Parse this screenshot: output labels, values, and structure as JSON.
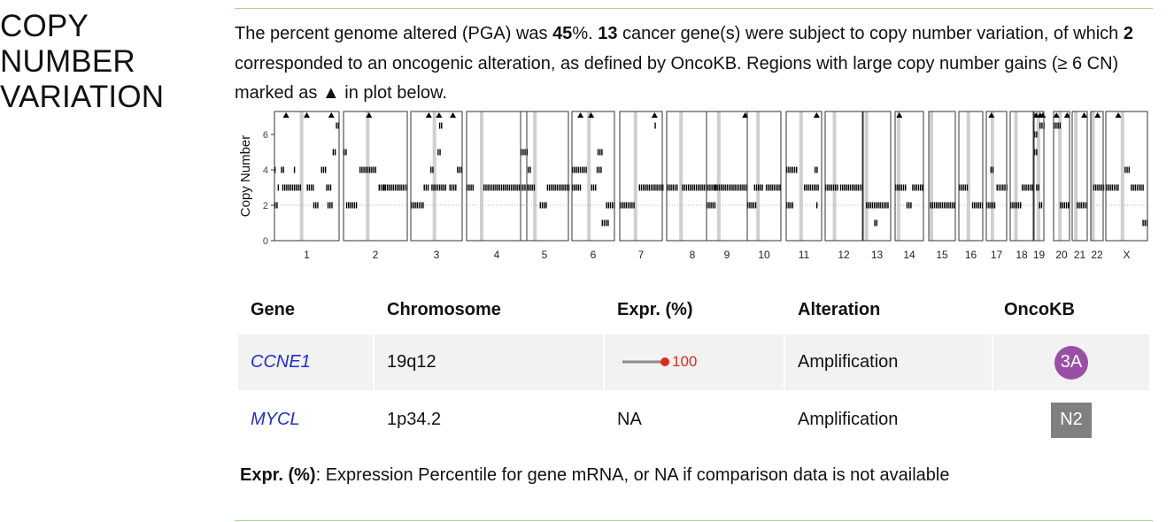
{
  "section": {
    "title_line1": "COPY NUMBER",
    "title_line2": "VARIATION"
  },
  "summary": {
    "t1": "The percent genome altered (PGA) was ",
    "pga": "45",
    "t2": "%. ",
    "n_genes": "13",
    "t3": " cancer gene(s) were subject to copy number variation, of which ",
    "n_onco": "2",
    "t4": " corresponded to an oncogenic alteration, as defined by OncoKB. Regions with large copy number gains (≥ 6 CN) marked as ▲ in plot below."
  },
  "chart_data": {
    "type": "scatter",
    "ylabel": "Copy Number",
    "y_ticks": [
      0,
      2,
      4,
      6
    ],
    "ylim": [
      0,
      7.3
    ],
    "reference_line_y": 2,
    "large_gain_threshold": 6,
    "large_gain_marker": "▲",
    "chromosomes": [
      {
        "name": "1",
        "cen": 0.42,
        "segs": [
          [
            0.0,
            0.06,
            2
          ],
          [
            0.0,
            0.03,
            4
          ],
          [
            0.05,
            0.08,
            3
          ],
          [
            0.1,
            0.16,
            4
          ],
          [
            0.12,
            0.4,
            3
          ],
          [
            0.3,
            0.32,
            4
          ],
          [
            0.5,
            0.6,
            3
          ],
          [
            0.6,
            0.68,
            2
          ],
          [
            0.72,
            0.8,
            4
          ],
          [
            0.8,
            0.88,
            3
          ],
          [
            0.82,
            0.9,
            2
          ],
          [
            0.9,
            0.95,
            5
          ],
          [
            0.95,
            1.0,
            6.5
          ]
        ],
        "gains": [
          0.18,
          0.5,
          0.88
        ]
      },
      {
        "name": "2",
        "cen": 0.38,
        "segs": [
          [
            0.0,
            0.05,
            5
          ],
          [
            0.04,
            0.2,
            2
          ],
          [
            0.25,
            0.5,
            4
          ],
          [
            0.55,
            0.65,
            3
          ],
          [
            0.62,
            1.0,
            3
          ]
        ],
        "gains": [
          0.4
        ]
      },
      {
        "name": "3",
        "cen": 0.46,
        "segs": [
          [
            0.0,
            0.25,
            2
          ],
          [
            0.25,
            0.35,
            3
          ],
          [
            0.38,
            0.42,
            4
          ],
          [
            0.4,
            0.7,
            3
          ],
          [
            0.52,
            0.58,
            5
          ],
          [
            0.55,
            0.62,
            6.5
          ],
          [
            0.75,
            0.9,
            3
          ],
          [
            0.9,
            1.0,
            4
          ]
        ],
        "gains": [
          0.35,
          0.55,
          0.82
        ]
      },
      {
        "name": "4",
        "cen": 0.25,
        "segs": [
          [
            0.0,
            0.1,
            3
          ],
          [
            0.28,
            1.0,
            3
          ]
        ],
        "gains": []
      },
      {
        "name": "5",
        "cen": 0.3,
        "segs": [
          [
            0.0,
            0.15,
            5
          ],
          [
            0.15,
            0.22,
            4
          ],
          [
            0.15,
            0.28,
            3
          ],
          [
            0.4,
            0.55,
            2
          ],
          [
            0.55,
            1.0,
            3
          ]
        ],
        "gains": []
      },
      {
        "name": "6",
        "cen": 0.4,
        "segs": [
          [
            0.0,
            0.2,
            3
          ],
          [
            0.0,
            0.35,
            4
          ],
          [
            0.45,
            0.55,
            3
          ],
          [
            0.58,
            0.7,
            4
          ],
          [
            0.6,
            0.72,
            5
          ],
          [
            0.7,
            0.85,
            1
          ],
          [
            0.8,
            1.0,
            2
          ]
        ],
        "gains": [
          0.2,
          0.45
        ]
      },
      {
        "name": "7",
        "cen": 0.37,
        "segs": [
          [
            0.0,
            0.35,
            2
          ],
          [
            0.45,
            1.0,
            3
          ],
          [
            0.82,
            0.86,
            6.5
          ]
        ],
        "gains": [
          0.82
        ]
      },
      {
        "name": "8",
        "cen": 0.28,
        "segs": [
          [
            0.0,
            0.2,
            3
          ],
          [
            0.3,
            1.0,
            3
          ]
        ],
        "gains": []
      },
      {
        "name": "9",
        "cen": 0.3,
        "segs": [
          [
            0.0,
            0.2,
            2
          ],
          [
            0.2,
            0.35,
            3
          ],
          [
            0.35,
            0.75,
            3
          ],
          [
            0.78,
            1.0,
            3
          ]
        ],
        "gains": [
          0.95
        ]
      },
      {
        "name": "10",
        "cen": 0.32,
        "segs": [
          [
            0.0,
            0.25,
            2
          ],
          [
            0.2,
            0.45,
            3
          ],
          [
            0.55,
            1.0,
            3
          ]
        ],
        "gains": []
      },
      {
        "name": "11",
        "cen": 0.42,
        "segs": [
          [
            0.0,
            0.3,
            4
          ],
          [
            0.0,
            0.2,
            2
          ],
          [
            0.5,
            0.9,
            3
          ],
          [
            0.8,
            0.86,
            4
          ],
          [
            0.85,
            0.9,
            2
          ]
        ],
        "gains": [
          0.86
        ]
      },
      {
        "name": "12",
        "cen": 0.25,
        "segs": [
          [
            0.0,
            0.35,
            3
          ],
          [
            0.4,
            1.0,
            3
          ]
        ],
        "gains": []
      },
      {
        "name": "13",
        "cen": 0.12,
        "segs": [
          [
            0.1,
            0.9,
            2
          ],
          [
            0.4,
            0.5,
            1
          ]
        ],
        "gains": []
      },
      {
        "name": "14",
        "cen": 0.12,
        "segs": [
          [
            0.0,
            0.35,
            3
          ],
          [
            0.4,
            0.6,
            2
          ],
          [
            0.6,
            1.0,
            3
          ]
        ],
        "gains": [
          0.15
        ]
      },
      {
        "name": "15",
        "cen": 0.1,
        "segs": [
          [
            0.05,
            1.0,
            2
          ]
        ],
        "gains": []
      },
      {
        "name": "16",
        "cen": 0.4,
        "segs": [
          [
            0.0,
            0.35,
            3
          ],
          [
            0.55,
            1.0,
            2
          ]
        ],
        "gains": []
      },
      {
        "name": "17",
        "cen": 0.3,
        "segs": [
          [
            0.0,
            0.4,
            2
          ],
          [
            0.2,
            0.35,
            4
          ],
          [
            0.5,
            1.0,
            3
          ]
        ],
        "gains": [
          0.25
        ]
      },
      {
        "name": "18",
        "cen": 0.25,
        "segs": [
          [
            0.0,
            0.45,
            2
          ],
          [
            0.5,
            1.0,
            3
          ]
        ],
        "gains": []
      },
      {
        "name": "19",
        "cen": 0.45,
        "segs": [
          [
            0.0,
            0.3,
            6
          ],
          [
            0.0,
            0.4,
            5
          ],
          [
            0.2,
            0.45,
            3
          ],
          [
            0.5,
            0.8,
            2
          ],
          [
            0.55,
            1.0,
            6.5
          ]
        ],
        "gains": [
          0.2,
          0.62,
          0.9
        ]
      },
      {
        "name": "20",
        "cen": 0.4,
        "segs": [
          [
            0.0,
            0.4,
            6.5
          ],
          [
            0.4,
            1.0,
            2
          ]
        ],
        "gains": [
          0.18,
          0.85
        ]
      },
      {
        "name": "21",
        "cen": 0.25,
        "segs": [
          [
            0.3,
            1.0,
            2
          ]
        ],
        "gains": [
          0.8
        ]
      },
      {
        "name": "22",
        "cen": 0.18,
        "segs": [
          [
            0.2,
            1.0,
            3
          ]
        ],
        "gains": [
          0.55
        ]
      },
      {
        "name": "X",
        "cen": 0.4,
        "segs": [
          [
            0.0,
            0.3,
            3
          ],
          [
            0.45,
            0.55,
            4
          ],
          [
            0.6,
            0.9,
            3
          ],
          [
            0.88,
            1.0,
            1
          ]
        ],
        "gains": [
          0.3
        ]
      }
    ]
  },
  "table": {
    "headers": [
      "Gene",
      "Chromosome",
      "Expr. (%)",
      "Alteration",
      "OncoKB"
    ],
    "rows": [
      {
        "gene": "CCNE1",
        "chromosome": "19q12",
        "expr": "100",
        "alteration": "Amplification",
        "oncokb": "3A"
      },
      {
        "gene": "MYCL",
        "chromosome": "1p34.2",
        "expr": "NA",
        "alteration": "Amplification",
        "oncokb": "N2"
      }
    ]
  },
  "colors": {
    "expr_dot": "#e02a1e",
    "gene_link": "#1f2fd0",
    "oncokb_3a": "#9a4fa6",
    "oncokb_n2": "#808080",
    "rule": "#a8d58f"
  },
  "footnote": {
    "bold": "Expr. (%)",
    "text": ": Expression Percentile for gene mRNA, or NA if comparison data is not available"
  }
}
